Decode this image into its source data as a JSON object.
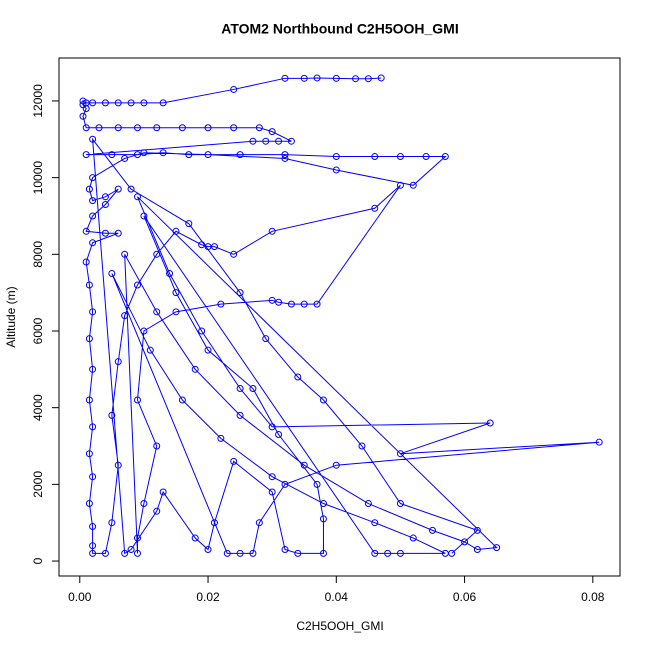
{
  "chart_data": {
    "type": "line",
    "title": "ATOM2 Northbound C2H5OOH_GMI",
    "xlabel": "C2H5OOH_GMI",
    "ylabel": "Altitude (m)",
    "xlim": [
      -0.00324,
      0.08424
    ],
    "ylim": [
      -390,
      13120
    ],
    "xticks": [
      {
        "value": 0,
        "label": "0.00"
      },
      {
        "value": 0.02,
        "label": "0.02"
      },
      {
        "value": 0.04,
        "label": "0.04"
      },
      {
        "value": 0.06,
        "label": "0.06"
      },
      {
        "value": 0.08,
        "label": "0.08"
      }
    ],
    "yticks": [
      0,
      2000,
      4000,
      6000,
      8000,
      10000,
      12000
    ],
    "grid": false,
    "markers": true,
    "x": [
      0.047,
      0.045,
      0.043,
      0.04,
      0.037,
      0.035,
      0.032,
      0.024,
      0.013,
      0.01,
      0.008,
      0.006,
      0.004,
      0.002,
      0.001,
      0.0005,
      0.0005,
      0.001,
      0.0005,
      0.001,
      0.003,
      0.006,
      0.009,
      0.012,
      0.016,
      0.02,
      0.024,
      0.028,
      0.03,
      0.033,
      0.031,
      0.029,
      0.027,
      0.001,
      0.005,
      0.009,
      0.013,
      0.017,
      0.025,
      0.032,
      0.04,
      0.046,
      0.05,
      0.054,
      0.057,
      0.052,
      0.04,
      0.032,
      0.02,
      0.01,
      0.007,
      0.002,
      0.0015,
      0.002,
      0.004,
      0.006,
      0.004,
      0.002,
      0.001,
      0.004,
      0.006,
      0.002,
      0.001,
      0.0015,
      0.002,
      0.0015,
      0.002,
      0.0015,
      0.002,
      0.0015,
      0.002,
      0.0015,
      0.002,
      0.002,
      0.002,
      0.004,
      0.005,
      0.006,
      0.005,
      0.006,
      0.007,
      0.009,
      0.012,
      0.015,
      0.019,
      0.02,
      0.021,
      0.024,
      0.03,
      0.046,
      0.05,
      0.037,
      0.035,
      0.033,
      0.031,
      0.03,
      0.022,
      0.015,
      0.01,
      0.009,
      0.012,
      0.01,
      0.009,
      0.009,
      0.007,
      0.012,
      0.018,
      0.025,
      0.035,
      0.045,
      0.055,
      0.06,
      0.062,
      0.065,
      0.009,
      0.014,
      0.019,
      0.025,
      0.03,
      0.064,
      0.05,
      0.081,
      0.04,
      0.032,
      0.028,
      0.027,
      0.025,
      0.023,
      0.005,
      0.011,
      0.016,
      0.022,
      0.03,
      0.038,
      0.046,
      0.052,
      0.057,
      0.05,
      0.048,
      0.046,
      0.01,
      0.015,
      0.02,
      0.027,
      0.031,
      0.037,
      0.038,
      0.038,
      0.034,
      0.032,
      0.03,
      0.024,
      0.021,
      0.02,
      0.018,
      0.013,
      0.012,
      0.008,
      0.007,
      0.002,
      0.008,
      0.017,
      0.025,
      0.029,
      0.034,
      0.038,
      0.044,
      0.05,
      0.062,
      0.058
    ],
    "series": [
      {
        "color": "#0000ff",
        "values": [
          12600,
          12580,
          12580,
          12590,
          12600,
          12590,
          12590,
          12300,
          11950,
          11950,
          11950,
          11950,
          11950,
          11950,
          11950,
          12000,
          11900,
          11800,
          11600,
          11300,
          11300,
          11300,
          11300,
          11300,
          11300,
          11300,
          11300,
          11300,
          11200,
          10950,
          10950,
          10950,
          10950,
          10600,
          10600,
          10600,
          10650,
          10600,
          10600,
          10600,
          10550,
          10550,
          10550,
          10550,
          10550,
          9800,
          10200,
          10500,
          10600,
          10650,
          10500,
          10000,
          9700,
          9400,
          9500,
          9700,
          9300,
          9000,
          8600,
          8550,
          8550,
          8300,
          7800,
          7200,
          6500,
          5800,
          5000,
          4200,
          3500,
          2800,
          2200,
          1500,
          900,
          400,
          200,
          200,
          1000,
          2500,
          3800,
          5200,
          6400,
          7200,
          8000,
          8600,
          8250,
          8200,
          8200,
          8000,
          8600,
          9200,
          9800,
          6700,
          6700,
          6700,
          6750,
          6800,
          6700,
          6500,
          6000,
          4200,
          3000,
          1500,
          600,
          200,
          8000,
          6500,
          5000,
          3800,
          2500,
          1500,
          800,
          500,
          300,
          350,
          9500,
          7500,
          6000,
          4500,
          3500,
          3600,
          2800,
          3100,
          2500,
          2000,
          1000,
          200,
          200,
          200,
          7500,
          5500,
          4200,
          3200,
          2200,
          1500,
          1000,
          600,
          200,
          200,
          200,
          200,
          9000,
          7000,
          5500,
          4500,
          3300,
          2000,
          1100,
          200,
          200,
          300,
          1800,
          2600,
          1000,
          300,
          600,
          1800,
          1300,
          300,
          200,
          11000,
          9700,
          8800,
          7000,
          5800,
          4800,
          4200,
          3000,
          1500,
          800,
          200
        ]
      }
    ]
  }
}
